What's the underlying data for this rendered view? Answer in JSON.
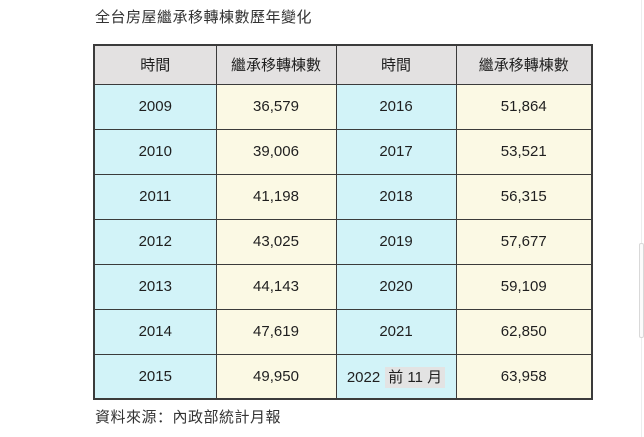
{
  "page": {
    "title": "全台房屋繼承移轉棟數歷年變化",
    "source": "資料來源：內政部統計月報"
  },
  "table": {
    "headers": [
      "時間",
      "繼承移轉棟數",
      "時間",
      "繼承移轉棟數"
    ],
    "rows": [
      {
        "y1": "2009",
        "v1": "36,579",
        "y2": "2016",
        "v2": "51,864"
      },
      {
        "y1": "2010",
        "v1": "39,006",
        "y2": "2017",
        "v2": "53,521"
      },
      {
        "y1": "2011",
        "v1": "41,198",
        "y2": "2018",
        "v2": "56,315"
      },
      {
        "y1": "2012",
        "v1": "43,025",
        "y2": "2019",
        "v2": "57,677"
      },
      {
        "y1": "2013",
        "v1": "44,143",
        "y2": "2020",
        "v2": "59,109"
      },
      {
        "y1": "2014",
        "v1": "47,619",
        "y2": "2021",
        "v2": "62,850"
      },
      {
        "y1": "2015",
        "v1": "49,950",
        "y2": "2022",
        "y2_highlight": "前 11 月",
        "v2": "63,958"
      }
    ]
  },
  "chart_data": {
    "type": "table",
    "title": "全台房屋繼承移轉棟數歷年變化",
    "columns": [
      "時間",
      "繼承移轉棟數",
      "時間",
      "繼承移轉棟數"
    ],
    "categories": [
      "2009",
      "2010",
      "2011",
      "2012",
      "2013",
      "2014",
      "2015",
      "2016",
      "2017",
      "2018",
      "2019",
      "2020",
      "2021",
      "2022 前 11 月"
    ],
    "values": [
      36579,
      39006,
      41198,
      43025,
      44143,
      47619,
      49950,
      51864,
      53521,
      56315,
      57677,
      59109,
      62850,
      63958
    ],
    "source": "資料來源：內政部統計月報"
  },
  "colors": {
    "header_bg": "#e3e1e1",
    "year_cell_bg": "#d2f3f8",
    "value_cell_bg": "#fbf9e4",
    "border": "#3b3b3b",
    "highlight_bg": "#e3e3e3"
  }
}
